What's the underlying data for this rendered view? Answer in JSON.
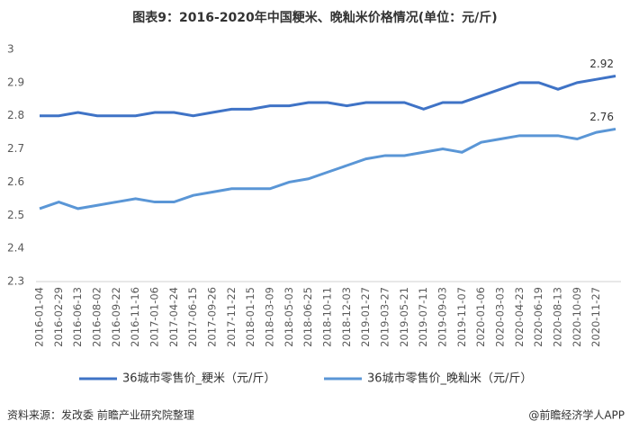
{
  "chart_data": {
    "type": "line",
    "title": "图表9：2016-2020年中国粳米、晚籼米价格情况(单位：元/斤)",
    "categories": [
      "2016-01-04",
      "2016-02-29",
      "2016-06-13",
      "2016-08-02",
      "2016-09-22",
      "2016-11-16",
      "2017-01-06",
      "2017-04-24",
      "2017-06-15",
      "2017-09-26",
      "2017-11-22",
      "2018-01-15",
      "2018-03-09",
      "2018-05-03",
      "2018-06-25",
      "2018-10-11",
      "2018-12-03",
      "2019-01-27",
      "2019-03-27",
      "2019-05-21",
      "2019-07-11",
      "2019-09-03",
      "2019-11-07",
      "2020-01-06",
      "2020-03-03",
      "2020-04-23",
      "2020-06-19",
      "2020-08-13",
      "2020-10-09",
      "2020-11-27",
      null
    ],
    "series": [
      {
        "name": "36城市零售价_粳米（元/斤）",
        "color": "#3f73c6",
        "values": [
          2.8,
          2.8,
          2.81,
          2.8,
          2.8,
          2.8,
          2.81,
          2.81,
          2.8,
          2.81,
          2.82,
          2.82,
          2.83,
          2.83,
          2.84,
          2.84,
          2.83,
          2.84,
          2.84,
          2.84,
          2.82,
          2.84,
          2.84,
          2.86,
          2.88,
          2.9,
          2.9,
          2.88,
          2.9,
          2.91,
          2.92
        ]
      },
      {
        "name": "36城市零售价_晚籼米（元/斤）",
        "color": "#5a96d6",
        "values": [
          2.52,
          2.54,
          2.52,
          2.53,
          2.54,
          2.55,
          2.54,
          2.54,
          2.56,
          2.57,
          2.58,
          2.58,
          2.58,
          2.6,
          2.61,
          2.63,
          2.65,
          2.67,
          2.68,
          2.68,
          2.69,
          2.7,
          2.69,
          2.72,
          2.73,
          2.74,
          2.74,
          2.74,
          2.73,
          2.75,
          2.76
        ]
      }
    ],
    "ylim": [
      2.3,
      3
    ],
    "yticks": [
      2.3,
      2.4,
      2.5,
      2.6,
      2.7,
      2.8,
      2.9,
      3
    ],
    "grid": false,
    "source": "资料来源：发改委 前瞻产业研究院整理",
    "credit": "@前瞻经济学人APP"
  }
}
